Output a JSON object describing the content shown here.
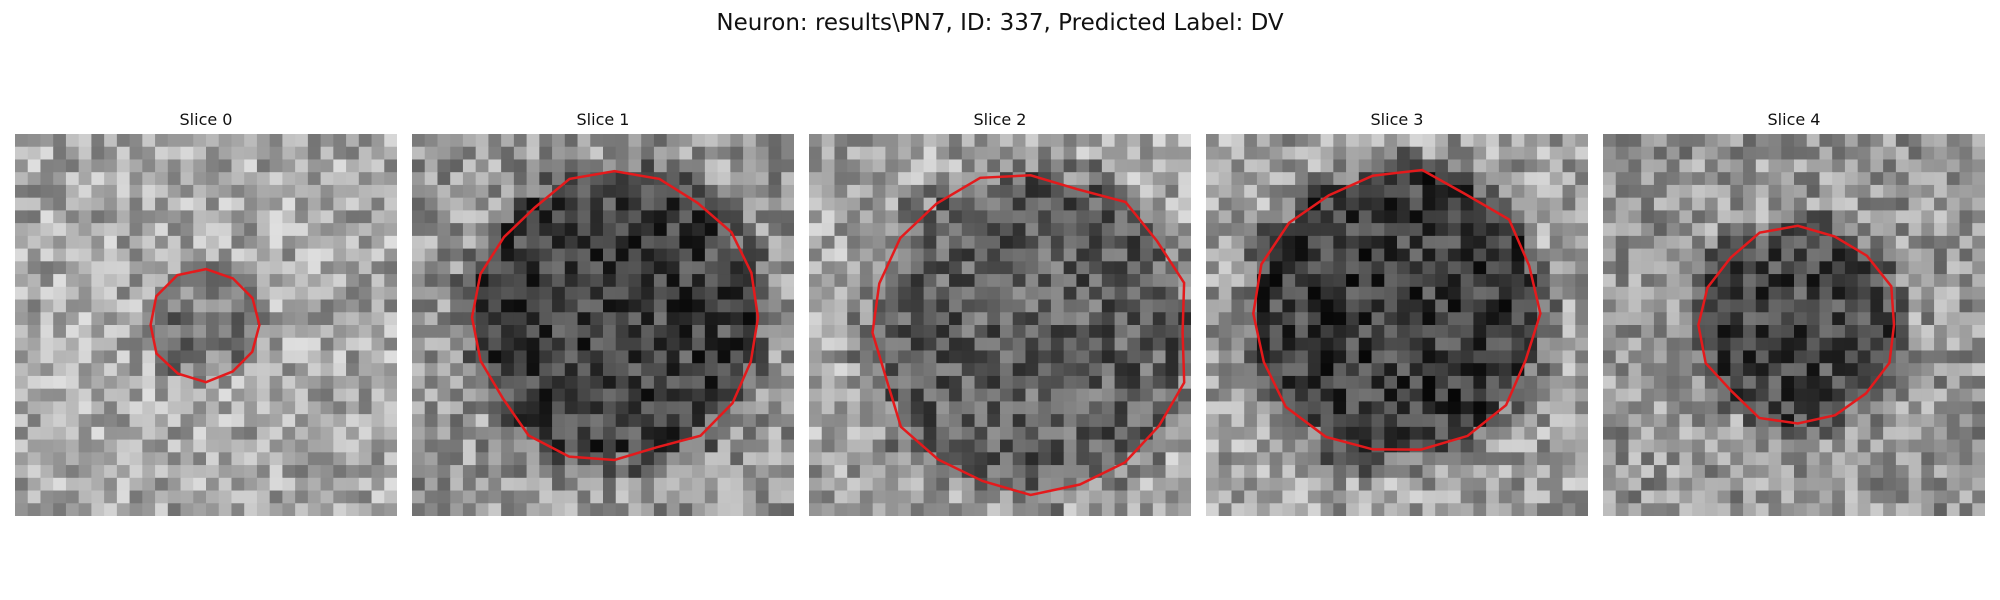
{
  "figure": {
    "title": "Neuron: results\\PN7, ID: 337, Predicted Label: DV"
  },
  "contour_color": "#e41a1c",
  "panels": [
    {
      "title": "Slice 0",
      "seed": 11,
      "base_gray": 168,
      "inner_gray": 120,
      "radius": 0.145,
      "vertices": 12
    },
    {
      "title": "Slice 1",
      "seed": 23,
      "base_gray": 150,
      "inner_gray": 65,
      "radius": 0.37,
      "vertices": 20
    },
    {
      "title": "Slice 2",
      "seed": 37,
      "base_gray": 165,
      "inner_gray": 95,
      "radius": 0.41,
      "vertices": 20
    },
    {
      "title": "Slice 3",
      "seed": 41,
      "base_gray": 160,
      "inner_gray": 60,
      "radius": 0.37,
      "vertices": 18
    },
    {
      "title": "Slice 4",
      "seed": 53,
      "base_gray": 150,
      "inner_gray": 70,
      "radius": 0.255,
      "vertices": 16
    }
  ]
}
